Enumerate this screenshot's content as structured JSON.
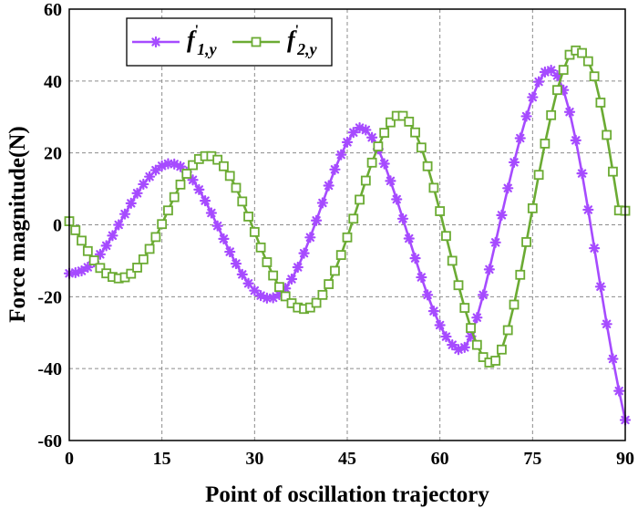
{
  "chart_data": {
    "type": "line",
    "xlabel": "Point of oscillation trajectory",
    "ylabel": "Force magnitude(N)",
    "xlim": [
      0,
      90
    ],
    "ylim": [
      -60,
      60
    ],
    "xticks": [
      "0",
      "15",
      "30",
      "45",
      "60",
      "75",
      "90"
    ],
    "yticks": [
      "-60",
      "-40",
      "-20",
      "0",
      "20",
      "40",
      "60"
    ],
    "grid": true,
    "legend_position": "top-left",
    "series": [
      {
        "name": "f'1,y",
        "legend": {
          "base": "f",
          "prime": "'",
          "sub": "1,y"
        },
        "color": "#a64bff",
        "marker": "asterisk",
        "x": [
          0,
          1,
          2,
          3,
          4,
          5,
          6,
          7,
          8,
          9,
          10,
          11,
          12,
          13,
          14,
          15,
          16,
          17,
          18,
          19,
          20,
          21,
          22,
          23,
          24,
          25,
          26,
          27,
          28,
          29,
          30,
          31,
          32,
          33,
          34,
          35,
          36,
          37,
          38,
          39,
          40,
          41,
          42,
          43,
          44,
          45,
          46,
          47,
          48,
          49,
          50,
          51,
          52,
          53,
          54,
          55,
          56,
          57,
          58,
          59,
          60,
          61,
          62,
          63,
          64,
          65,
          66,
          67,
          68,
          69,
          70,
          71,
          72,
          73,
          74,
          75,
          76,
          77,
          78,
          79,
          80,
          81,
          82,
          83,
          84,
          85,
          86,
          87,
          88,
          89,
          90
        ],
        "values": [
          -13.5,
          -13.3,
          -12.8,
          -11.8,
          -10.3,
          -8.2,
          -5.8,
          -3.0,
          0.0,
          3.0,
          6.0,
          8.8,
          11.3,
          13.4,
          15.2,
          16.4,
          17.0,
          16.9,
          16.2,
          14.7,
          12.5,
          9.8,
          6.7,
          3.3,
          -0.3,
          -3.9,
          -7.5,
          -10.8,
          -13.8,
          -16.3,
          -18.3,
          -19.7,
          -20.4,
          -20.3,
          -19.4,
          -17.7,
          -15.1,
          -11.8,
          -7.9,
          -3.5,
          1.2,
          6.1,
          10.9,
          15.4,
          19.5,
          23.0,
          25.7,
          27.0,
          26.4,
          24.3,
          21.1,
          17.0,
          12.2,
          7.1,
          1.7,
          -3.8,
          -9.3,
          -14.6,
          -19.5,
          -24.0,
          -27.9,
          -31.1,
          -33.4,
          -34.7,
          -34.1,
          -31.0,
          -25.8,
          -19.5,
          -12.4,
          -4.9,
          2.7,
          10.2,
          17.4,
          24.1,
          30.2,
          35.5,
          39.8,
          42.5,
          43.0,
          41.5,
          37.5,
          31.4,
          23.5,
          14.3,
          4.2,
          -6.5,
          -17.2,
          -27.6,
          -37.3,
          -46.2,
          -54.3
        ]
      },
      {
        "name": "f'2,y",
        "legend": {
          "base": "f",
          "prime": "'",
          "sub": "2,y"
        },
        "color": "#6bab33",
        "marker": "square",
        "x": [
          0,
          1,
          2,
          3,
          4,
          5,
          6,
          7,
          8,
          9,
          10,
          11,
          12,
          13,
          14,
          15,
          16,
          17,
          18,
          19,
          20,
          21,
          22,
          23,
          24,
          25,
          26,
          27,
          28,
          29,
          30,
          31,
          32,
          33,
          34,
          35,
          36,
          37,
          38,
          39,
          40,
          41,
          42,
          43,
          44,
          45,
          46,
          47,
          48,
          49,
          50,
          51,
          52,
          53,
          54,
          55,
          56,
          57,
          58,
          59,
          60,
          61,
          62,
          63,
          64,
          65,
          66,
          67,
          68,
          69,
          70,
          71,
          72,
          73,
          74,
          75,
          76,
          77,
          78,
          79,
          80,
          81,
          82,
          83,
          84,
          85,
          86,
          87,
          88,
          89,
          90
        ],
        "values": [
          1.0,
          -1.5,
          -4.4,
          -7.3,
          -9.9,
          -12.0,
          -13.5,
          -14.5,
          -14.9,
          -14.6,
          -13.6,
          -11.9,
          -9.6,
          -6.7,
          -3.4,
          0.2,
          4.0,
          7.7,
          11.2,
          14.2,
          16.6,
          18.3,
          19.1,
          19.1,
          18.1,
          16.3,
          13.6,
          10.3,
          6.5,
          2.3,
          -2.0,
          -6.3,
          -10.4,
          -14.1,
          -17.3,
          -19.9,
          -21.8,
          -23.0,
          -23.4,
          -23.0,
          -21.7,
          -19.5,
          -16.5,
          -12.8,
          -8.4,
          -3.5,
          1.7,
          7.0,
          12.3,
          17.3,
          21.8,
          25.6,
          28.5,
          30.3,
          30.3,
          28.7,
          25.7,
          21.5,
          16.3,
          10.3,
          3.8,
          -3.1,
          -10.0,
          -16.8,
          -23.1,
          -28.7,
          -33.4,
          -36.8,
          -38.3,
          -37.8,
          -34.7,
          -29.3,
          -22.2,
          -13.9,
          -4.8,
          4.6,
          13.9,
          22.6,
          30.5,
          37.5,
          43.1,
          47.3,
          48.5,
          47.8,
          45.5,
          41.3,
          34.0,
          25.0,
          14.8,
          4.0,
          3.9
        ]
      }
    ]
  }
}
